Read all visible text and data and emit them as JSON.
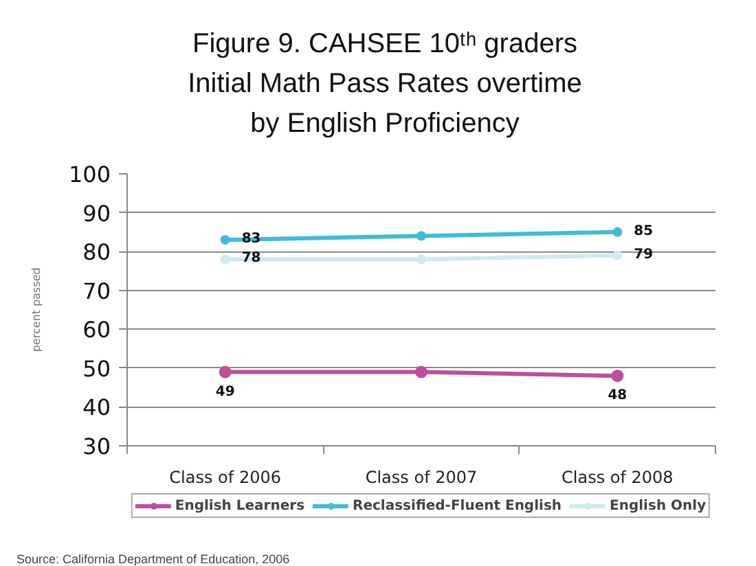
{
  "chart_data": {
    "type": "line",
    "title": "Figure 9. CAHSEE 10ᵗʰ graders\nInitial Math Pass Rates overtime\nby English Proficiency",
    "ylabel": "percent passed",
    "categories": [
      "Class of 2006",
      "Class of 2007",
      "Class of 2008"
    ],
    "series": [
      {
        "name": "English Learners",
        "color": "#bd4f9c",
        "values": [
          49,
          49,
          48
        ],
        "value_labels": [
          "49",
          null,
          "48"
        ]
      },
      {
        "name": "Reclassified-Fluent English",
        "color": "#3fbcd8",
        "values": [
          83,
          84,
          85
        ],
        "value_labels": [
          "83",
          null,
          "85"
        ]
      },
      {
        "name": "English Only",
        "color": "#cfeaf0",
        "values": [
          78,
          78,
          79
        ],
        "value_labels": [
          "78",
          null,
          "79"
        ]
      }
    ],
    "ylim": [
      30,
      100
    ],
    "yticks": [
      30,
      40,
      50,
      60,
      70,
      80,
      90,
      100
    ],
    "grid": "y",
    "legend": "bottom",
    "marker": "circle",
    "line_style": "solid",
    "annotations": [
      "Source: California Department of Education, 2006"
    ]
  }
}
